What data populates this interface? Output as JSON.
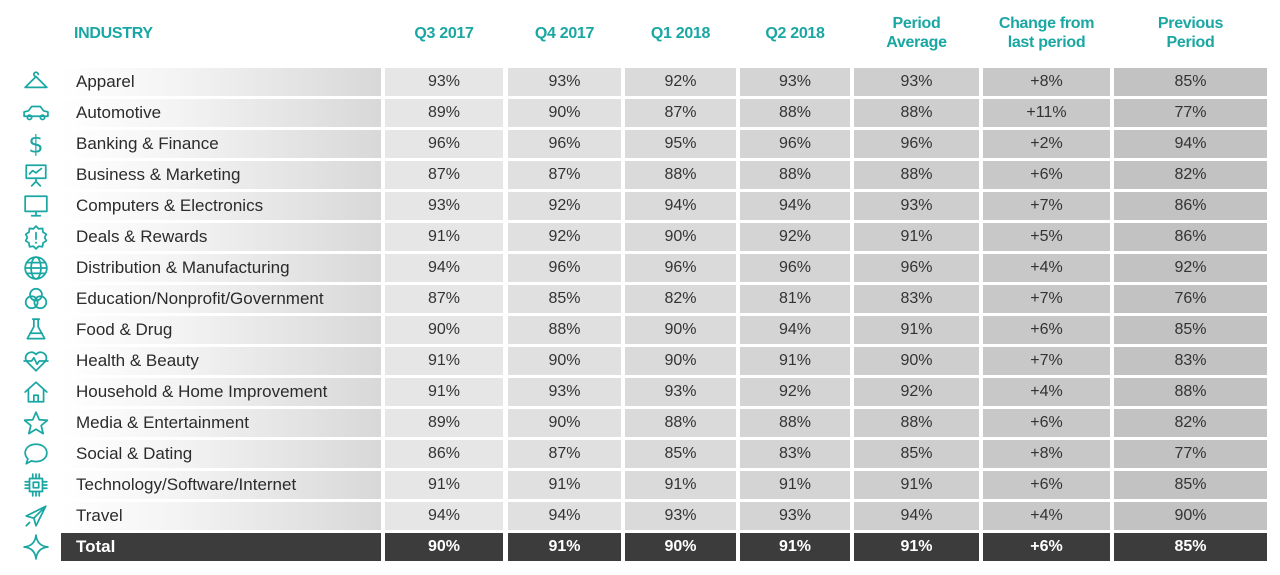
{
  "colors": {
    "accent": "#1aa7a3",
    "total_bg": "#3c3c3c"
  },
  "chart_data": {
    "type": "table",
    "columns": [
      "INDUSTRY",
      "Q3 2017",
      "Q4 2017",
      "Q1 2018",
      "Q2 2018",
      "Period Average",
      "Change from last period",
      "Previous Period"
    ],
    "header_lines": {
      "industry": [
        "INDUSTRY"
      ],
      "q3_2017": [
        "Q3 2017"
      ],
      "q4_2017": [
        "Q4 2017"
      ],
      "q1_2018": [
        "Q1 2018"
      ],
      "q2_2018": [
        "Q2 2018"
      ],
      "period_average": [
        "Period",
        "Average"
      ],
      "change": [
        "Change from",
        "last period"
      ],
      "previous": [
        "Previous",
        "Period"
      ]
    },
    "rows": [
      {
        "icon": "hanger-icon",
        "industry": "Apparel",
        "values": [
          "93%",
          "93%",
          "92%",
          "93%",
          "93%",
          "+8%",
          "85%"
        ]
      },
      {
        "icon": "car-icon",
        "industry": "Automotive",
        "values": [
          "89%",
          "90%",
          "87%",
          "88%",
          "88%",
          "+11%",
          "77%"
        ]
      },
      {
        "icon": "dollar-icon",
        "industry": "Banking & Finance",
        "values": [
          "96%",
          "96%",
          "95%",
          "96%",
          "96%",
          "+2%",
          "94%"
        ]
      },
      {
        "icon": "presentation-icon",
        "industry": "Business & Marketing",
        "values": [
          "87%",
          "87%",
          "88%",
          "88%",
          "88%",
          "+6%",
          "82%"
        ]
      },
      {
        "icon": "monitor-icon",
        "industry": "Computers & Electronics",
        "values": [
          "93%",
          "92%",
          "94%",
          "94%",
          "93%",
          "+7%",
          "86%"
        ]
      },
      {
        "icon": "badge-alert-icon",
        "industry": "Deals & Rewards",
        "values": [
          "91%",
          "92%",
          "90%",
          "92%",
          "91%",
          "+5%",
          "86%"
        ]
      },
      {
        "icon": "globe-icon",
        "industry": "Distribution & Manufacturing",
        "values": [
          "94%",
          "96%",
          "96%",
          "96%",
          "96%",
          "+4%",
          "92%"
        ]
      },
      {
        "icon": "venn-icon",
        "industry": "Education/Nonprofit/Government",
        "values": [
          "87%",
          "85%",
          "82%",
          "81%",
          "83%",
          "+7%",
          "76%"
        ]
      },
      {
        "icon": "flask-icon",
        "industry": "Food & Drug",
        "values": [
          "90%",
          "88%",
          "90%",
          "94%",
          "91%",
          "+6%",
          "85%"
        ]
      },
      {
        "icon": "heartbeat-icon",
        "industry": "Health & Beauty",
        "values": [
          "91%",
          "90%",
          "90%",
          "91%",
          "90%",
          "+7%",
          "83%"
        ]
      },
      {
        "icon": "house-icon",
        "industry": "Household & Home Improvement",
        "values": [
          "91%",
          "93%",
          "93%",
          "92%",
          "92%",
          "+4%",
          "88%"
        ]
      },
      {
        "icon": "star-icon",
        "industry": "Media & Entertainment",
        "values": [
          "89%",
          "90%",
          "88%",
          "88%",
          "88%",
          "+6%",
          "82%"
        ]
      },
      {
        "icon": "chat-bubble-icon",
        "industry": "Social & Dating",
        "values": [
          "86%",
          "87%",
          "85%",
          "83%",
          "85%",
          "+8%",
          "77%"
        ]
      },
      {
        "icon": "chip-icon",
        "industry": "Technology/Software/Internet",
        "values": [
          "91%",
          "91%",
          "91%",
          "91%",
          "91%",
          "+6%",
          "85%"
        ]
      },
      {
        "icon": "airplane-icon",
        "industry": "Travel",
        "values": [
          "94%",
          "94%",
          "93%",
          "93%",
          "94%",
          "+4%",
          "90%"
        ]
      },
      {
        "icon": "sparkle-icon",
        "industry": "Total",
        "values": [
          "90%",
          "91%",
          "90%",
          "91%",
          "91%",
          "+6%",
          "85%"
        ],
        "is_total": true
      }
    ]
  }
}
